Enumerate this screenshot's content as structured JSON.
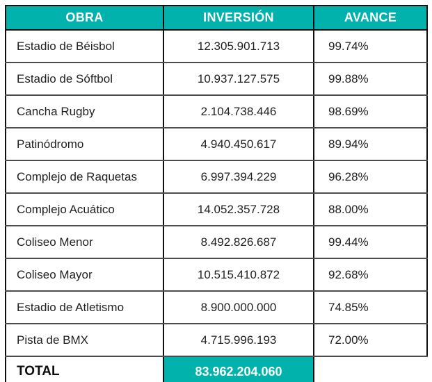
{
  "accent_color": "#00B1AC",
  "table": {
    "columns": [
      "OBRA",
      "INVERSIÓN",
      "AVANCE"
    ],
    "rows": [
      {
        "obra": "Estadio de Béisbol",
        "inversion": "12.305.901.713",
        "avance": "99.74%"
      },
      {
        "obra": "Estadio de Sóftbol",
        "inversion": "10.937.127.575",
        "avance": "99.88%"
      },
      {
        "obra": "Cancha Rugby",
        "inversion": "2.104.738.446",
        "avance": "98.69%"
      },
      {
        "obra": "Patinódromo",
        "inversion": "4.940.450.617",
        "avance": "89.94%"
      },
      {
        "obra": "Complejo de Raquetas",
        "inversion": "6.997.394.229",
        "avance": "96.28%"
      },
      {
        "obra": "Complejo Acuático",
        "inversion": "14.052.357.728",
        "avance": "88.00%"
      },
      {
        "obra": "Coliseo Menor",
        "inversion": "8.492.826.687",
        "avance": "99.44%"
      },
      {
        "obra": "Coliseo Mayor",
        "inversion": "10.515.410.872",
        "avance": "92.68%"
      },
      {
        "obra": "Estadio de Atletismo",
        "inversion": "8.900.000.000",
        "avance": "74.85%"
      },
      {
        "obra": "Pista de BMX",
        "inversion": "4.715.996.193",
        "avance": "72.00%"
      }
    ],
    "total": {
      "label": "TOTAL",
      "inversion": "83.962.204.060",
      "avance": ""
    }
  },
  "chart_data": {
    "type": "table",
    "title": "",
    "columns": [
      "OBRA",
      "INVERSIÓN",
      "AVANCE"
    ],
    "rows": [
      {
        "obra": "Estadio de Béisbol",
        "inversion": 12305901713,
        "avance_pct": 99.74
      },
      {
        "obra": "Estadio de Sóftbol",
        "inversion": 10937127575,
        "avance_pct": 99.88
      },
      {
        "obra": "Cancha Rugby",
        "inversion": 2104738446,
        "avance_pct": 98.69
      },
      {
        "obra": "Patinódromo",
        "inversion": 4940450617,
        "avance_pct": 89.94
      },
      {
        "obra": "Complejo de Raquetas",
        "inversion": 6997394229,
        "avance_pct": 96.28
      },
      {
        "obra": "Complejo Acuático",
        "inversion": 14052357728,
        "avance_pct": 88.0
      },
      {
        "obra": "Coliseo Menor",
        "inversion": 8492826687,
        "avance_pct": 99.44
      },
      {
        "obra": "Coliseo Mayor",
        "inversion": 10515410872,
        "avance_pct": 92.68
      },
      {
        "obra": "Estadio de Atletismo",
        "inversion": 8900000000,
        "avance_pct": 74.85
      },
      {
        "obra": "Pista de BMX",
        "inversion": 4715996193,
        "avance_pct": 72.0
      }
    ],
    "total_inversion": 83962204060
  }
}
